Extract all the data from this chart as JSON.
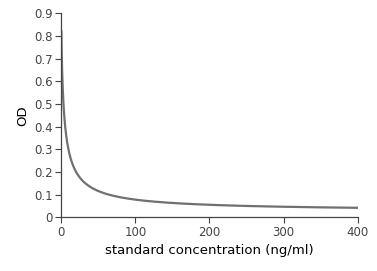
{
  "title": "",
  "xlabel": "standard concentration (ng/ml)",
  "ylabel": "OD",
  "xlim": [
    0,
    400
  ],
  "ylim": [
    0,
    0.9
  ],
  "xticks": [
    0,
    100,
    200,
    300,
    400
  ],
  "yticks": [
    0.0,
    0.1,
    0.2,
    0.3,
    0.4,
    0.5,
    0.6,
    0.7,
    0.8,
    0.9
  ],
  "line_color": "#707070",
  "line_width": 1.6,
  "curve_A": 0.82,
  "curve_D": 0.025,
  "curve_IC50": 4.5,
  "curve_n": 0.85,
  "background_color": "#ffffff",
  "spine_color": "#444444",
  "tick_color": "#444444",
  "tick_fontsize": 8.5,
  "label_fontsize": 9.5,
  "figsize": [
    3.77,
    2.71
  ],
  "dpi": 100
}
